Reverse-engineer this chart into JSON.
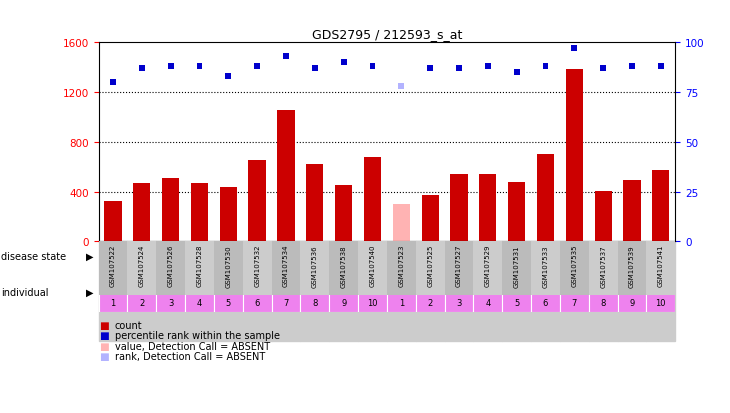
{
  "title": "GDS2795 / 212593_s_at",
  "samples": [
    "GSM107522",
    "GSM107524",
    "GSM107526",
    "GSM107528",
    "GSM107530",
    "GSM107532",
    "GSM107534",
    "GSM107536",
    "GSM107538",
    "GSM107540",
    "GSM107523",
    "GSM107525",
    "GSM107527",
    "GSM107529",
    "GSM107531",
    "GSM107533",
    "GSM107535",
    "GSM107537",
    "GSM107539",
    "GSM107541"
  ],
  "bar_values": [
    320,
    470,
    510,
    470,
    440,
    650,
    1060,
    620,
    455,
    680,
    300,
    370,
    540,
    540,
    480,
    700,
    1390,
    405,
    490,
    570
  ],
  "bar_colors": [
    "#cc0000",
    "#cc0000",
    "#cc0000",
    "#cc0000",
    "#cc0000",
    "#cc0000",
    "#cc0000",
    "#cc0000",
    "#cc0000",
    "#cc0000",
    "#ffb3b3",
    "#cc0000",
    "#cc0000",
    "#cc0000",
    "#cc0000",
    "#cc0000",
    "#cc0000",
    "#cc0000",
    "#cc0000",
    "#cc0000"
  ],
  "rank_values": [
    80,
    87,
    88,
    88,
    83,
    88,
    93,
    87,
    90,
    88,
    78,
    87,
    87,
    88,
    85,
    88,
    97,
    87,
    88,
    88
  ],
  "rank_colors": [
    "#0000cc",
    "#0000cc",
    "#0000cc",
    "#0000cc",
    "#0000cc",
    "#0000cc",
    "#0000cc",
    "#0000cc",
    "#0000cc",
    "#0000cc",
    "#b3b3ff",
    "#0000cc",
    "#0000cc",
    "#0000cc",
    "#0000cc",
    "#0000cc",
    "#0000cc",
    "#0000cc",
    "#0000cc",
    "#0000cc"
  ],
  "ylim_left": [
    0,
    1600
  ],
  "ylim_right": [
    0,
    100
  ],
  "yticks_left": [
    0,
    400,
    800,
    1200,
    1600
  ],
  "yticks_right": [
    0,
    25,
    50,
    75,
    100
  ],
  "normal_color": "#90ee90",
  "disease_color": "#33cc33",
  "patient_color": "#ee82ee",
  "bar_width": 0.6,
  "absent_index": 10,
  "legend_items": [
    {
      "color": "#cc0000",
      "label": "count"
    },
    {
      "color": "#0000cc",
      "label": "percentile rank within the sample"
    },
    {
      "color": "#ffb3b3",
      "label": "value, Detection Call = ABSENT"
    },
    {
      "color": "#b3b3ff",
      "label": "rank, Detection Call = ABSENT"
    }
  ]
}
